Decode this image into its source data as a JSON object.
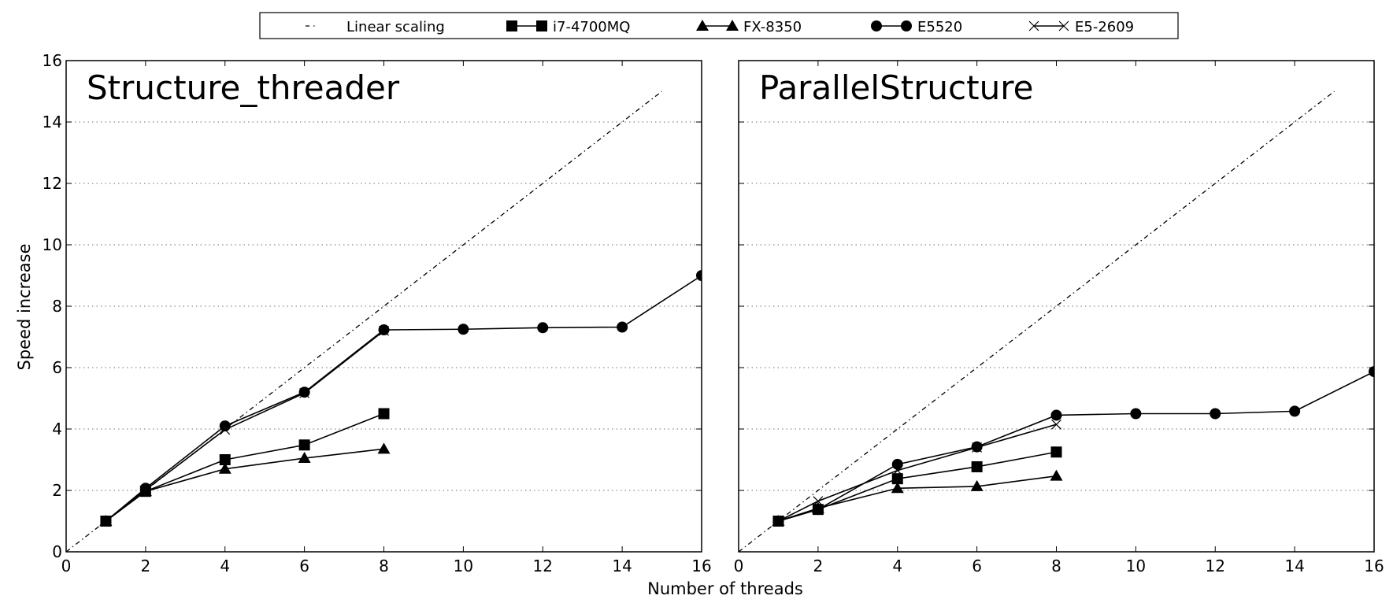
{
  "chart_data": [
    {
      "type": "line",
      "title": "Structure_threader",
      "xlabel": "Number of threads",
      "ylabel": "Speed increase",
      "xlim": [
        0,
        16
      ],
      "ylim": [
        0,
        16
      ],
      "x_ticks": [
        "0",
        "2",
        "4",
        "6",
        "8",
        "10",
        "12",
        "14",
        "16"
      ],
      "y_ticks": [
        "0",
        "2",
        "4",
        "6",
        "8",
        "10",
        "12",
        "14",
        "16"
      ],
      "grid": "horizontal dotted",
      "series": [
        {
          "name": "Linear scaling",
          "style": "dashdot",
          "marker": "none",
          "x": [
            0,
            15
          ],
          "y": [
            0,
            15
          ]
        },
        {
          "name": "i7-4700MQ",
          "marker": "square",
          "x": [
            1,
            2,
            4,
            6,
            8
          ],
          "y": [
            1,
            1.97,
            3.0,
            3.48,
            4.5
          ]
        },
        {
          "name": "FX-8350",
          "marker": "triangle",
          "x": [
            1,
            2,
            4,
            6,
            8
          ],
          "y": [
            1,
            1.97,
            2.7,
            3.05,
            3.35
          ]
        },
        {
          "name": "E5520",
          "marker": "circle",
          "x": [
            1,
            2,
            4,
            6,
            8,
            10,
            12,
            14,
            16
          ],
          "y": [
            1,
            2.07,
            4.1,
            5.2,
            7.23,
            7.25,
            7.3,
            7.32,
            9.0
          ]
        },
        {
          "name": "E5-2609",
          "marker": "x",
          "x": [
            1,
            2,
            4,
            6,
            8
          ],
          "y": [
            1,
            2.02,
            3.98,
            5.17,
            7.2
          ]
        }
      ]
    },
    {
      "type": "line",
      "title": "ParallelStructure",
      "xlabel": "Number of threads",
      "ylabel": "",
      "xlim": [
        0,
        16
      ],
      "ylim": [
        0,
        16
      ],
      "x_ticks": [
        "0",
        "2",
        "4",
        "6",
        "8",
        "10",
        "12",
        "14",
        "16"
      ],
      "y_ticks": [],
      "grid": "horizontal dotted",
      "series": [
        {
          "name": "Linear scaling",
          "style": "dashdot",
          "marker": "none",
          "x": [
            0,
            15
          ],
          "y": [
            0,
            15
          ]
        },
        {
          "name": "i7-4700MQ",
          "marker": "square",
          "x": [
            1,
            2,
            4,
            6,
            8
          ],
          "y": [
            1,
            1.38,
            2.38,
            2.77,
            3.25
          ]
        },
        {
          "name": "FX-8350",
          "marker": "triangle",
          "x": [
            1,
            2,
            4,
            6,
            8
          ],
          "y": [
            1,
            1.42,
            2.07,
            2.13,
            2.47
          ]
        },
        {
          "name": "E5520",
          "marker": "circle",
          "x": [
            1,
            2,
            4,
            6,
            8,
            10,
            12,
            14,
            16
          ],
          "y": [
            1,
            1.38,
            2.85,
            3.42,
            4.45,
            4.5,
            4.5,
            4.58,
            5.87
          ]
        },
        {
          "name": "E5-2609",
          "marker": "x",
          "x": [
            1,
            2,
            4,
            6,
            8
          ],
          "y": [
            1,
            1.65,
            2.65,
            3.4,
            4.15
          ]
        }
      ]
    }
  ],
  "legend": {
    "placement": "top-center",
    "entries": [
      {
        "label": "Linear scaling",
        "marker": "none"
      },
      {
        "label": "i7-4700MQ",
        "marker": "square"
      },
      {
        "label": "FX-8350",
        "marker": "triangle"
      },
      {
        "label": "E5520",
        "marker": "circle"
      },
      {
        "label": "E5-2609",
        "marker": "x"
      }
    ]
  },
  "colors": {
    "line": "#000000",
    "grid": "#8c8c8c",
    "background": "#ffffff"
  }
}
